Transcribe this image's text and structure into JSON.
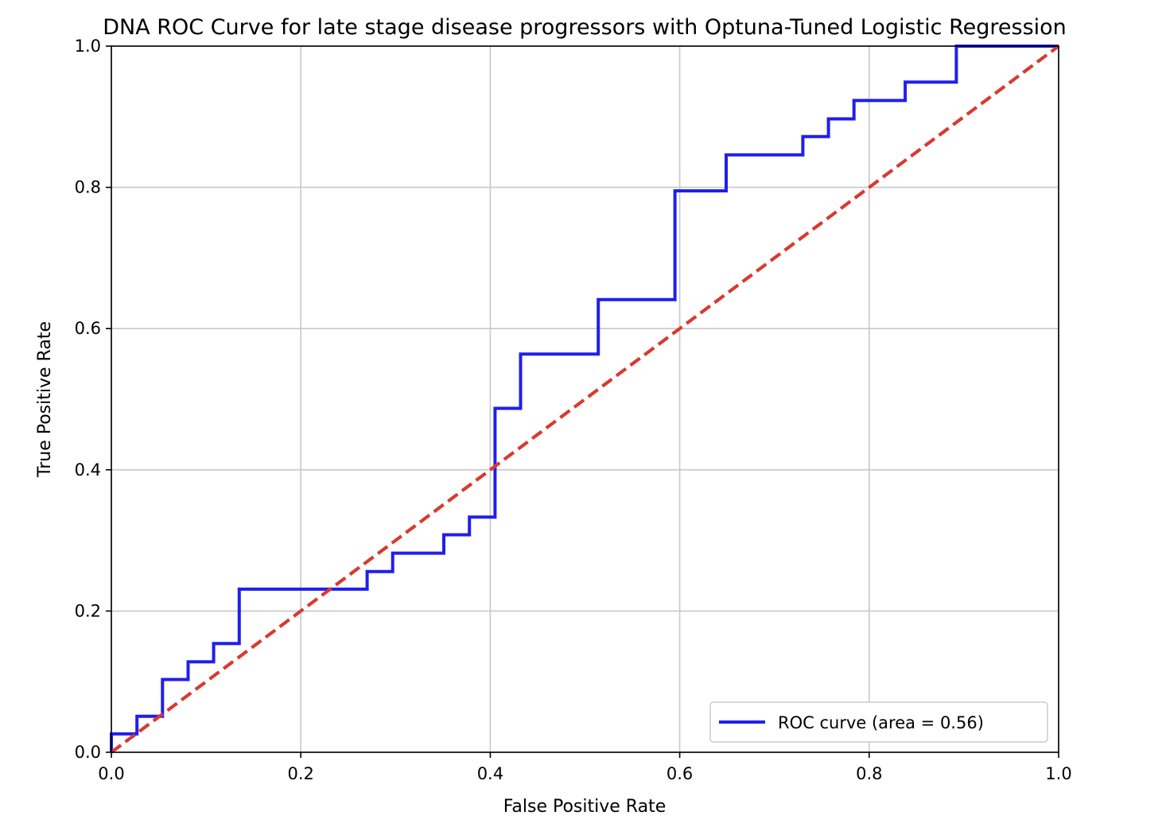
{
  "chart_data": {
    "type": "line",
    "title": "DNA ROC Curve for late stage disease progressors with Optuna-Tuned Logistic Regression",
    "xlabel": "False Positive Rate",
    "ylabel": "True Positive Rate",
    "xlim": [
      0.0,
      1.0
    ],
    "ylim": [
      0.0,
      1.0
    ],
    "xticks": [
      "0.0",
      "0.2",
      "0.4",
      "0.6",
      "0.8",
      "1.0"
    ],
    "yticks": [
      "0.0",
      "0.2",
      "0.4",
      "0.6",
      "0.8",
      "1.0"
    ],
    "grid": true,
    "legend_position": "lower-right",
    "series": [
      {
        "name": "ROC curve (area = 0.56)",
        "color": "#1f1fee",
        "style": "step",
        "x": [
          0.0,
          0.0,
          0.027,
          0.027,
          0.054,
          0.054,
          0.081,
          0.081,
          0.108,
          0.108,
          0.135,
          0.135,
          0.27,
          0.27,
          0.297,
          0.297,
          0.351,
          0.351,
          0.378,
          0.378,
          0.405,
          0.405,
          0.432,
          0.432,
          0.514,
          0.514,
          0.595,
          0.595,
          0.649,
          0.649,
          0.73,
          0.73,
          0.757,
          0.757,
          0.784,
          0.784,
          0.838,
          0.838,
          0.892,
          0.892,
          1.0
        ],
        "y": [
          0.0,
          0.026,
          0.026,
          0.051,
          0.051,
          0.103,
          0.103,
          0.128,
          0.128,
          0.154,
          0.154,
          0.231,
          0.231,
          0.256,
          0.256,
          0.282,
          0.282,
          0.308,
          0.308,
          0.333,
          0.333,
          0.487,
          0.487,
          0.564,
          0.564,
          0.641,
          0.641,
          0.795,
          0.795,
          0.846,
          0.846,
          0.872,
          0.872,
          0.897,
          0.897,
          0.923,
          0.923,
          0.949,
          0.949,
          1.0,
          1.0
        ]
      },
      {
        "name": "",
        "color": "#d93a2f",
        "style": "dashed",
        "x": [
          0.0,
          1.0
        ],
        "y": [
          0.0,
          1.0
        ]
      }
    ]
  }
}
